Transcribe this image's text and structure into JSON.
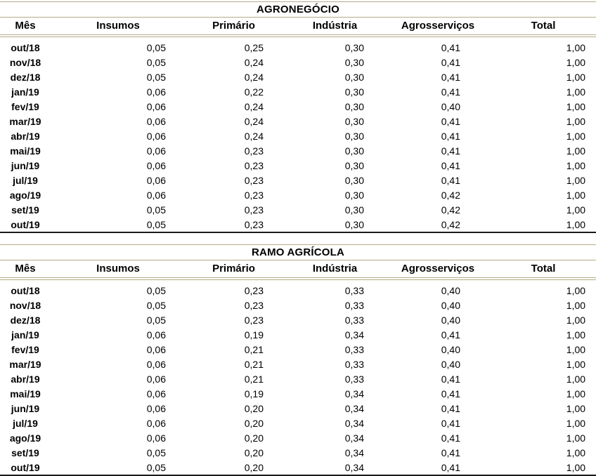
{
  "colors": {
    "border_accent": "#b3ab85",
    "border_bottom": "#1a1a1a",
    "text": "#000000"
  },
  "tables": [
    {
      "title": "AGRONEGÓCIO",
      "columns": [
        "Mês",
        "Insumos",
        "Primário",
        "Indústria",
        "Agrosserviços",
        "Total"
      ],
      "rows": [
        {
          "month": "out/18",
          "values": [
            "0,05",
            "0,25",
            "0,30",
            "0,41",
            "1,00"
          ]
        },
        {
          "month": "nov/18",
          "values": [
            "0,05",
            "0,24",
            "0,30",
            "0,41",
            "1,00"
          ]
        },
        {
          "month": "dez/18",
          "values": [
            "0,05",
            "0,24",
            "0,30",
            "0,41",
            "1,00"
          ]
        },
        {
          "month": "jan/19",
          "values": [
            "0,06",
            "0,22",
            "0,30",
            "0,41",
            "1,00"
          ]
        },
        {
          "month": "fev/19",
          "values": [
            "0,06",
            "0,24",
            "0,30",
            "0,40",
            "1,00"
          ]
        },
        {
          "month": "mar/19",
          "values": [
            "0,06",
            "0,24",
            "0,30",
            "0,41",
            "1,00"
          ]
        },
        {
          "month": "abr/19",
          "values": [
            "0,06",
            "0,24",
            "0,30",
            "0,41",
            "1,00"
          ]
        },
        {
          "month": "mai/19",
          "values": [
            "0,06",
            "0,23",
            "0,30",
            "0,41",
            "1,00"
          ]
        },
        {
          "month": "jun/19",
          "values": [
            "0,06",
            "0,23",
            "0,30",
            "0,41",
            "1,00"
          ]
        },
        {
          "month": "jul/19",
          "values": [
            "0,06",
            "0,23",
            "0,30",
            "0,41",
            "1,00"
          ]
        },
        {
          "month": "ago/19",
          "values": [
            "0,06",
            "0,23",
            "0,30",
            "0,42",
            "1,00"
          ]
        },
        {
          "month": "set/19",
          "values": [
            "0,05",
            "0,23",
            "0,30",
            "0,42",
            "1,00"
          ]
        },
        {
          "month": "out/19",
          "values": [
            "0,05",
            "0,23",
            "0,30",
            "0,42",
            "1,00"
          ]
        }
      ]
    },
    {
      "title": "RAMO AGRÍCOLA",
      "columns": [
        "Mês",
        "Insumos",
        "Primário",
        "Indústria",
        "Agrosserviços",
        "Total"
      ],
      "rows": [
        {
          "month": "out/18",
          "values": [
            "0,05",
            "0,23",
            "0,33",
            "0,40",
            "1,00"
          ]
        },
        {
          "month": "nov/18",
          "values": [
            "0,05",
            "0,23",
            "0,33",
            "0,40",
            "1,00"
          ]
        },
        {
          "month": "dez/18",
          "values": [
            "0,05",
            "0,23",
            "0,33",
            "0,40",
            "1,00"
          ]
        },
        {
          "month": "jan/19",
          "values": [
            "0,06",
            "0,19",
            "0,34",
            "0,41",
            "1,00"
          ]
        },
        {
          "month": "fev/19",
          "values": [
            "0,06",
            "0,21",
            "0,33",
            "0,40",
            "1,00"
          ]
        },
        {
          "month": "mar/19",
          "values": [
            "0,06",
            "0,21",
            "0,33",
            "0,40",
            "1,00"
          ]
        },
        {
          "month": "abr/19",
          "values": [
            "0,06",
            "0,21",
            "0,33",
            "0,41",
            "1,00"
          ]
        },
        {
          "month": "mai/19",
          "values": [
            "0,06",
            "0,19",
            "0,34",
            "0,41",
            "1,00"
          ]
        },
        {
          "month": "jun/19",
          "values": [
            "0,06",
            "0,20",
            "0,34",
            "0,41",
            "1,00"
          ]
        },
        {
          "month": "jul/19",
          "values": [
            "0,06",
            "0,20",
            "0,34",
            "0,41",
            "1,00"
          ]
        },
        {
          "month": "ago/19",
          "values": [
            "0,06",
            "0,20",
            "0,34",
            "0,41",
            "1,00"
          ]
        },
        {
          "month": "set/19",
          "values": [
            "0,05",
            "0,20",
            "0,34",
            "0,41",
            "1,00"
          ]
        },
        {
          "month": "out/19",
          "values": [
            "0,05",
            "0,20",
            "0,34",
            "0,41",
            "1,00"
          ]
        }
      ]
    }
  ]
}
